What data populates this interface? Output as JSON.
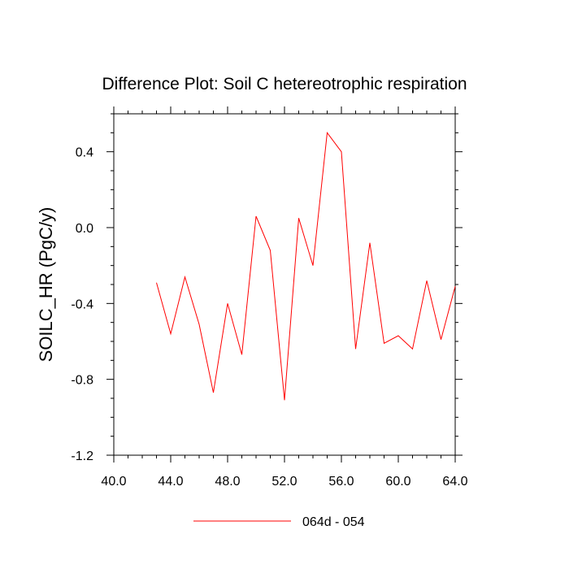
{
  "chart_data": {
    "type": "line",
    "title": "Difference Plot: Soil C hetereotrophic respiration",
    "ylabel": "SOILC_HR  (PgC/y)",
    "xlabel": "",
    "xlim": [
      40,
      64
    ],
    "ylim": [
      -1.2,
      0.6
    ],
    "x_ticks": [
      40,
      44,
      48,
      52,
      56,
      60,
      64
    ],
    "x_tick_labels": [
      "40.0",
      "44.0",
      "48.0",
      "52.0",
      "56.0",
      "60.0",
      "64.0"
    ],
    "y_ticks": [
      -1.2,
      -0.8,
      -0.4,
      0.0,
      0.4
    ],
    "y_tick_labels": [
      "-1.2",
      "-0.8",
      "-0.4",
      "0.0",
      "0.4"
    ],
    "grid": false,
    "legend_position": "bottom-center",
    "series": [
      {
        "name": "064d - 054",
        "color": "#ff0000",
        "x": [
          43,
          44,
          45,
          46,
          47,
          48,
          49,
          50,
          51,
          52,
          53,
          54,
          55,
          56,
          57,
          58,
          59,
          60,
          61,
          62,
          63,
          64
        ],
        "values": [
          -0.29,
          -0.56,
          -0.26,
          -0.51,
          -0.87,
          -0.4,
          -0.67,
          0.06,
          -0.12,
          -0.91,
          0.05,
          -0.2,
          0.5,
          0.4,
          -0.64,
          -0.08,
          -0.61,
          -0.57,
          -0.64,
          -0.28,
          -0.59,
          -0.31
        ]
      }
    ]
  }
}
